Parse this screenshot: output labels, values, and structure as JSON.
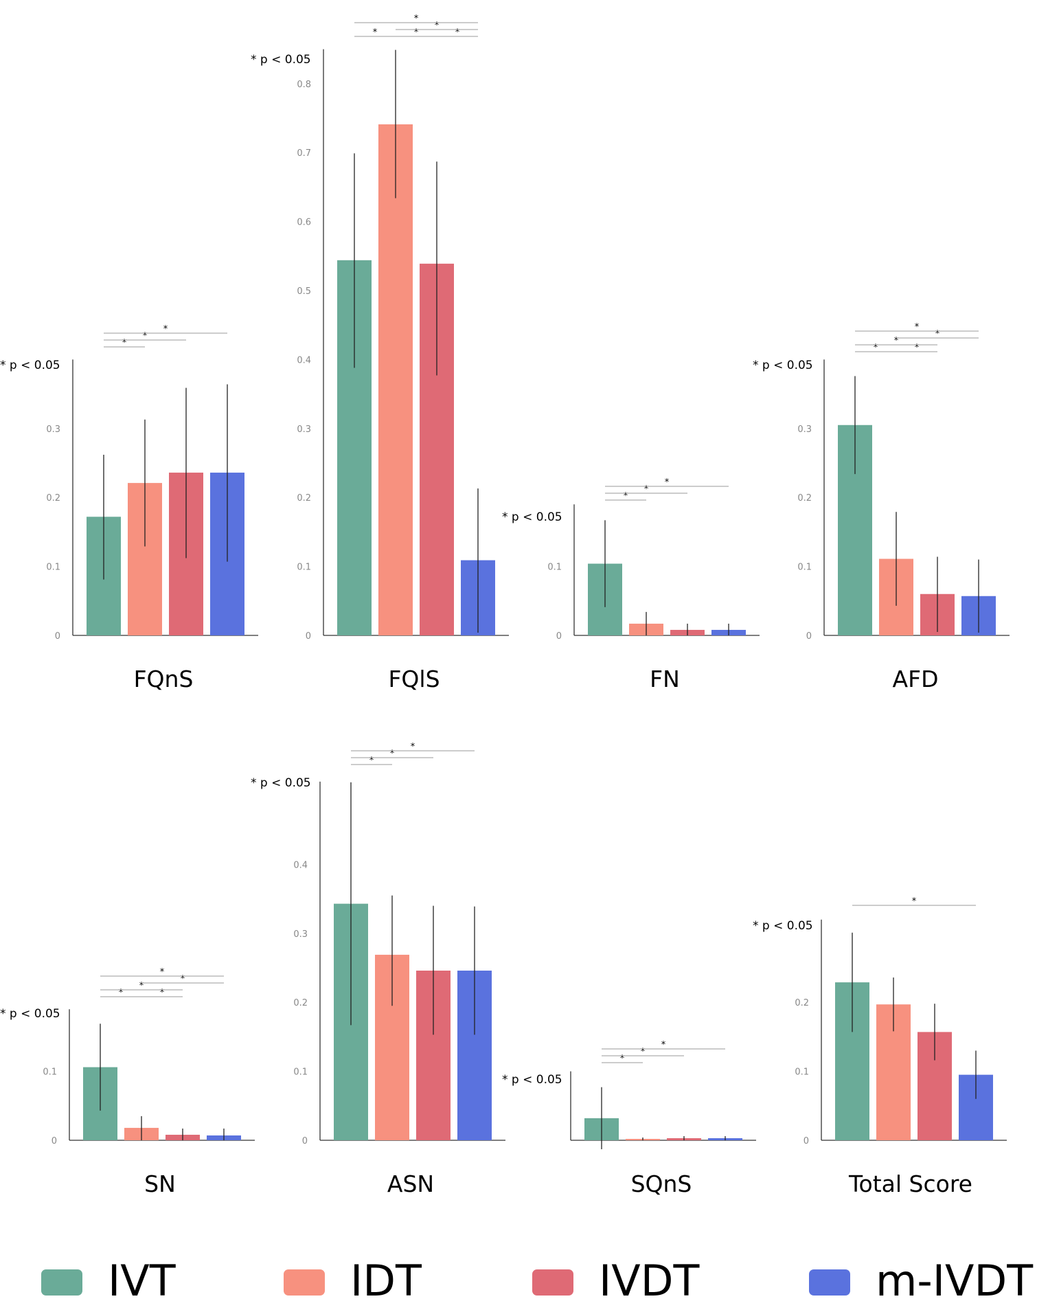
{
  "groups": [
    "IVT",
    "IDT",
    "IVDT",
    "m-IVDT"
  ],
  "colors": {
    "IVT": "#6aab98",
    "IDT": "#f7917f",
    "IVDT": "#df6a75",
    "m-IVDT": "#5a72de",
    "error_bar": "#222222",
    "axis": "#333333",
    "sig_line": "#9a9a9a"
  },
  "legend": {
    "items": [
      {
        "label": "IVT",
        "color": "#6aab98"
      },
      {
        "label": "IDT",
        "color": "#f7917f"
      },
      {
        "label": "IVDT",
        "color": "#df6a75"
      },
      {
        "label": "m-IVDT",
        "color": "#5a72de"
      }
    ]
  },
  "chart_data": [
    {
      "type": "bar",
      "title": "FQnS",
      "note": "* p < 0.05",
      "categories": [
        "IVT",
        "IDT",
        "IVDT",
        "m-IVDT"
      ],
      "values": [
        0.172,
        0.221,
        0.236,
        0.236
      ],
      "errors_low": [
        0.081,
        0.129,
        0.112,
        0.107
      ],
      "errors_high": [
        0.262,
        0.313,
        0.359,
        0.364
      ],
      "ylim": [
        0,
        0.4
      ],
      "yticks": [
        0,
        0.1,
        0.2,
        0.3
      ],
      "significance": [
        {
          "a": 0,
          "b": 1,
          "label": "*"
        },
        {
          "a": 0,
          "b": 2,
          "label": "*"
        },
        {
          "a": 0,
          "b": 3,
          "label": "*"
        }
      ]
    },
    {
      "type": "bar",
      "title": "FQlS",
      "note": "* p < 0.05",
      "categories": [
        "IVT",
        "IDT",
        "IVDT",
        "m-IVDT"
      ],
      "values": [
        0.544,
        0.741,
        0.539,
        0.109
      ],
      "errors_low": [
        0.388,
        0.634,
        0.377,
        0.004
      ],
      "errors_high": [
        0.699,
        0.849,
        0.687,
        0.213
      ],
      "ylim": [
        0,
        0.85
      ],
      "yticks": [
        0,
        0.1,
        0.2,
        0.3,
        0.4,
        0.5,
        0.6,
        0.7,
        0.8
      ],
      "significance": [
        {
          "a": 0,
          "b": 1,
          "label": "*"
        },
        {
          "a": 1,
          "b": 2,
          "label": "*"
        },
        {
          "a": 1,
          "b": 3,
          "label": "*"
        },
        {
          "a": 2,
          "b": 3,
          "label": "*"
        },
        {
          "a": 0,
          "b": 3,
          "label": "*"
        }
      ]
    },
    {
      "type": "bar",
      "title": "FN",
      "note": "* p < 0.05",
      "categories": [
        "IVT",
        "IDT",
        "IVDT",
        "m-IVDT"
      ],
      "values": [
        0.104,
        0.017,
        0.008,
        0.008
      ],
      "errors_low": [
        0.041,
        0.0,
        0.0,
        0.0
      ],
      "errors_high": [
        0.167,
        0.034,
        0.017,
        0.017
      ],
      "ylim": [
        0,
        0.19
      ],
      "yticks": [
        0,
        0.1
      ],
      "significance": [
        {
          "a": 0,
          "b": 1,
          "label": "*"
        },
        {
          "a": 0,
          "b": 2,
          "label": "*"
        },
        {
          "a": 0,
          "b": 3,
          "label": "*"
        }
      ]
    },
    {
      "type": "bar",
      "title": "AFD",
      "note": "* p < 0.05",
      "categories": [
        "IVT",
        "IDT",
        "IVDT",
        "m-IVDT"
      ],
      "values": [
        0.305,
        0.111,
        0.06,
        0.057
      ],
      "errors_low": [
        0.234,
        0.043,
        0.005,
        0.004
      ],
      "errors_high": [
        0.376,
        0.179,
        0.114,
        0.11
      ],
      "ylim": [
        0,
        0.4
      ],
      "yticks": [
        0,
        0.1,
        0.2,
        0.3
      ],
      "significance": [
        {
          "a": 0,
          "b": 1,
          "label": "*"
        },
        {
          "a": 0,
          "b": 2,
          "label": "*"
        },
        {
          "a": 1,
          "b": 3,
          "label": "*"
        },
        {
          "a": 0,
          "b": 3,
          "label": "*"
        },
        {
          "a": 1,
          "b": 2,
          "label": "*"
        }
      ]
    },
    {
      "type": "bar",
      "title": "SN",
      "note": "* p < 0.05",
      "categories": [
        "IVT",
        "IDT",
        "IVDT",
        "m-IVDT"
      ],
      "values": [
        0.106,
        0.018,
        0.008,
        0.007
      ],
      "errors_low": [
        0.043,
        0.0,
        0.0,
        0.0
      ],
      "errors_high": [
        0.169,
        0.035,
        0.017,
        0.017
      ],
      "ylim": [
        0,
        0.19
      ],
      "yticks": [
        0,
        0.1
      ],
      "significance": [
        {
          "a": 0,
          "b": 1,
          "label": "*"
        },
        {
          "a": 1,
          "b": 2,
          "label": "*"
        },
        {
          "a": 0,
          "b": 2,
          "label": "*"
        },
        {
          "a": 1,
          "b": 3,
          "label": "*"
        },
        {
          "a": 0,
          "b": 3,
          "label": "*"
        }
      ]
    },
    {
      "type": "bar",
      "title": "ASN",
      "note": "* p < 0.05",
      "categories": [
        "IVT",
        "IDT",
        "IVDT",
        "m-IVDT"
      ],
      "values": [
        0.343,
        0.269,
        0.246,
        0.246
      ],
      "errors_low": [
        0.167,
        0.195,
        0.153,
        0.153
      ],
      "errors_high": [
        0.519,
        0.355,
        0.34,
        0.339
      ],
      "ylim": [
        0,
        0.52
      ],
      "yticks": [
        0,
        0.1,
        0.2,
        0.3,
        0.4
      ],
      "significance": [
        {
          "a": 0,
          "b": 1,
          "label": "*"
        },
        {
          "a": 0,
          "b": 2,
          "label": "*"
        },
        {
          "a": 0,
          "b": 3,
          "label": "*"
        }
      ]
    },
    {
      "type": "bar",
      "title": "SQnS",
      "note": "* p < 0.05",
      "categories": [
        "IVT",
        "IDT",
        "IVDT",
        "m-IVDT"
      ],
      "values": [
        0.032,
        0.002,
        0.003,
        0.003
      ],
      "errors_low": [
        -0.013,
        0.0,
        0.0,
        0.0
      ],
      "errors_high": [
        0.077,
        0.004,
        0.006,
        0.006
      ],
      "ylim": [
        0,
        0.1
      ],
      "yticks": [],
      "significance": [
        {
          "a": 0,
          "b": 1,
          "label": "*"
        },
        {
          "a": 0,
          "b": 2,
          "label": "*"
        },
        {
          "a": 0,
          "b": 3,
          "label": "*"
        }
      ]
    },
    {
      "type": "bar",
      "title": "Total Score",
      "note": "* p < 0.05",
      "categories": [
        "IVT",
        "IDT",
        "IVDT",
        "m-IVDT"
      ],
      "values": [
        0.229,
        0.197,
        0.157,
        0.095
      ],
      "errors_low": [
        0.157,
        0.158,
        0.116,
        0.06
      ],
      "errors_high": [
        0.301,
        0.236,
        0.198,
        0.13
      ],
      "ylim": [
        0,
        0.32
      ],
      "yticks": [
        0,
        0.1,
        0.2
      ],
      "significance": [
        {
          "a": 0,
          "b": 3,
          "label": "*"
        }
      ]
    }
  ]
}
